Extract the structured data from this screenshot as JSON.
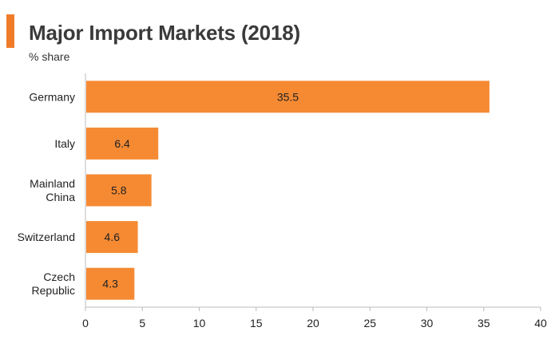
{
  "chart_data": {
    "type": "bar",
    "orientation": "horizontal",
    "title": "Major Import Markets (2018)",
    "subtitle": "% share",
    "categories": [
      "Germany",
      "Italy",
      "Mainland China",
      "Switzerland",
      "Czech Republic"
    ],
    "category_lines": [
      [
        "Germany"
      ],
      [
        "Italy"
      ],
      [
        "Mainland",
        "China"
      ],
      [
        "Switzerland"
      ],
      [
        "Czech",
        "Republic"
      ]
    ],
    "values": [
      35.5,
      6.4,
      5.8,
      4.6,
      4.3
    ],
    "value_labels": [
      "35.5",
      "6.4",
      "5.8",
      "4.6",
      "4.3"
    ],
    "xlim": [
      0,
      40
    ],
    "xticks": [
      0,
      5,
      10,
      15,
      20,
      25,
      30,
      35,
      40
    ],
    "xlabel": "",
    "ylabel": "",
    "grid": false,
    "legend": "none"
  },
  "colors": {
    "bar": "#f58a33",
    "accent": "#f07c2a",
    "axis": "#bbbbbb"
  }
}
